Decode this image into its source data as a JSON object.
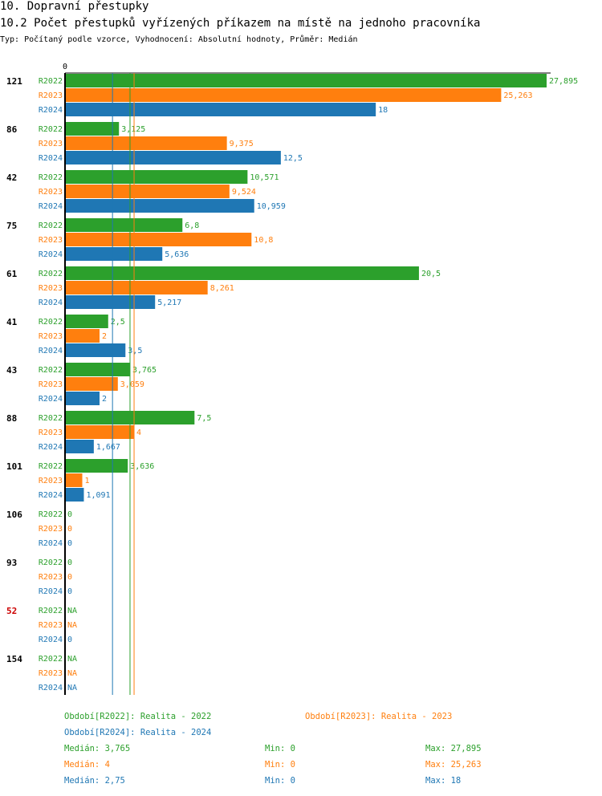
{
  "header": {
    "title": "10. Dopravní přestupky",
    "subtitle": "10.2 Počet přestupků vyřízených příkazem na místě na jednoho pracovníka",
    "type_line": "Typ: Počítaný podle vzorce, Vyhodnocení: Absolutní hodnoty, Průměr: Medián"
  },
  "colors": {
    "R2022": "#2ca02c",
    "R2023": "#ff7f0e",
    "R2024": "#1f77b4",
    "highlight_label": "#cc0000"
  },
  "chart_data": {
    "type": "bar",
    "orientation": "horizontal",
    "axis_zero_label": "0",
    "xlim": [
      0,
      27.895
    ],
    "categories": [
      "121",
      "86",
      "42",
      "75",
      "61",
      "41",
      "43",
      "88",
      "101",
      "106",
      "93",
      "52",
      "154"
    ],
    "highlighted_category": "52",
    "series": [
      {
        "name": "R2022",
        "values": [
          27.895,
          3.125,
          10.571,
          6.8,
          20.5,
          2.5,
          3.765,
          7.5,
          3.636,
          0,
          0,
          null,
          null
        ],
        "labels": [
          "27,895",
          "3,125",
          "10,571",
          "6,8",
          "20,5",
          "2,5",
          "3,765",
          "7,5",
          "3,636",
          "0",
          "0",
          "NA",
          "NA"
        ]
      },
      {
        "name": "R2023",
        "values": [
          25.263,
          9.375,
          9.524,
          10.8,
          8.261,
          2,
          3.059,
          4,
          1,
          0,
          0,
          null,
          null
        ],
        "labels": [
          "25,263",
          "9,375",
          "9,524",
          "10,8",
          "8,261",
          "2",
          "3,059",
          "4",
          "1",
          "0",
          "0",
          "NA",
          "NA"
        ]
      },
      {
        "name": "R2024",
        "values": [
          18,
          12.5,
          10.959,
          5.636,
          5.217,
          3.5,
          2,
          1.667,
          1.091,
          0,
          0,
          0,
          null
        ],
        "labels": [
          "18",
          "12,5",
          "10,959",
          "5,636",
          "5,217",
          "3,5",
          "2",
          "1,667",
          "1,091",
          "0",
          "0",
          "0",
          "NA"
        ]
      }
    ],
    "median_lines": {
      "R2022": 3.765,
      "R2023": 4,
      "R2024": 2.75
    }
  },
  "legend": {
    "periods": {
      "R2022": "Období[R2022]: Realita - 2022",
      "R2023": "Období[R2023]: Realita - 2023",
      "R2024": "Období[R2024]: Realita - 2024"
    },
    "stats": [
      {
        "series": "R2022",
        "median": "Medián: 3,765",
        "min": "Min: 0",
        "max": "Max: 27,895"
      },
      {
        "series": "R2023",
        "median": "Medián: 4",
        "min": "Min: 0",
        "max": "Max: 25,263"
      },
      {
        "series": "R2024",
        "median": "Medián: 2,75",
        "min": "Min: 0",
        "max": "Max: 18"
      }
    ]
  }
}
